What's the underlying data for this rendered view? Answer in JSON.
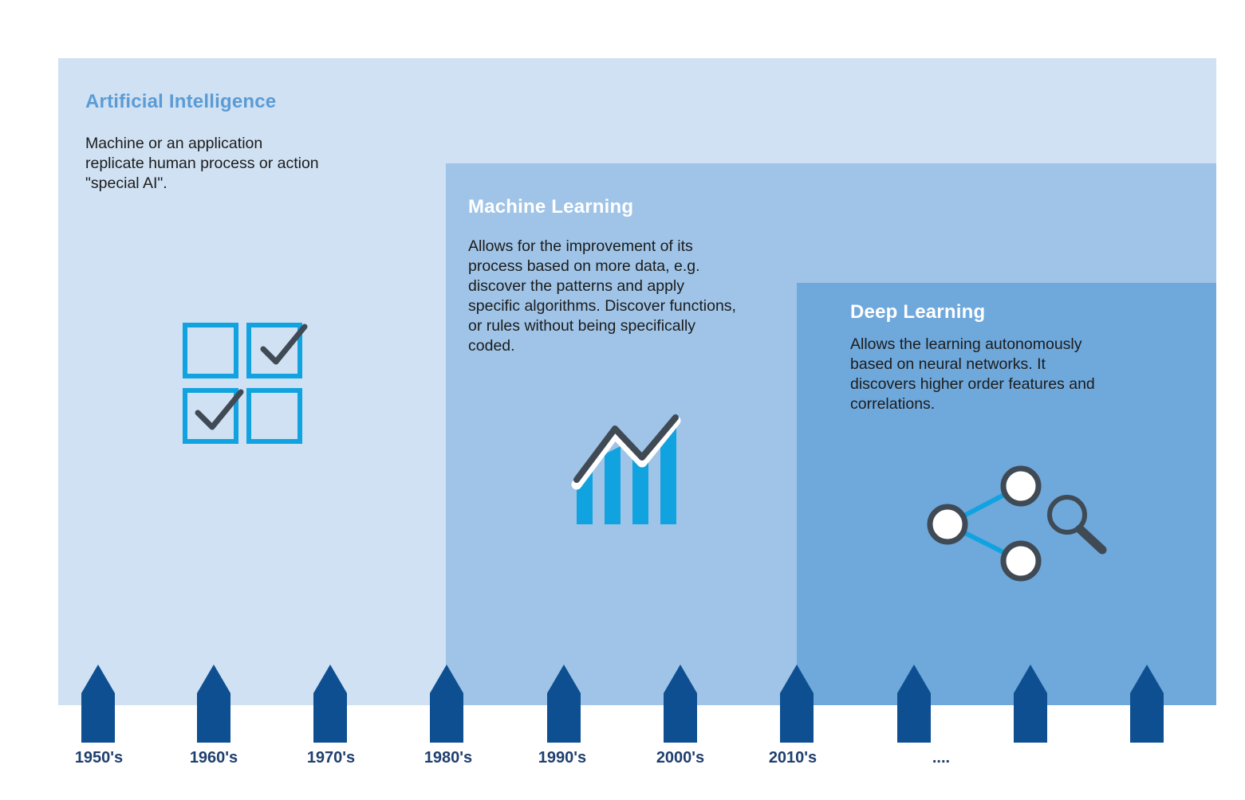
{
  "ai": {
    "title": "Artificial Intelligence",
    "description": "Machine or an application replicate human process or action \"special AI\"."
  },
  "ml": {
    "title": "Machine Learning",
    "description": "Allows for the improvement of its process based on more data, e.g. discover the patterns and apply specific algorithms. Discover functions, or rules without being specifically coded."
  },
  "dl": {
    "title": "Deep Learning",
    "description": "Allows the learning autonomously based on neural networks. It discovers higher order features and correlations."
  },
  "icons": {
    "ai": "checklist-icon",
    "ml": "growth-chart-icon",
    "dl": "network-search-icon"
  },
  "colors": {
    "ai_panel": "#cfe1f3",
    "ml_panel": "#9fc4e7",
    "dl_panel": "#6fa8db",
    "ai_title": "#5b9bd5",
    "icon_blue": "#11a3e0",
    "icon_dark": "#3f4a55",
    "timeline_arrow": "#0d4f91",
    "year_text": "#1f3f6e"
  },
  "timeline": {
    "labels": [
      "1950's",
      "1960's",
      "1970's",
      "1980's",
      "1990's",
      "2000's",
      "2010's",
      "...."
    ]
  }
}
